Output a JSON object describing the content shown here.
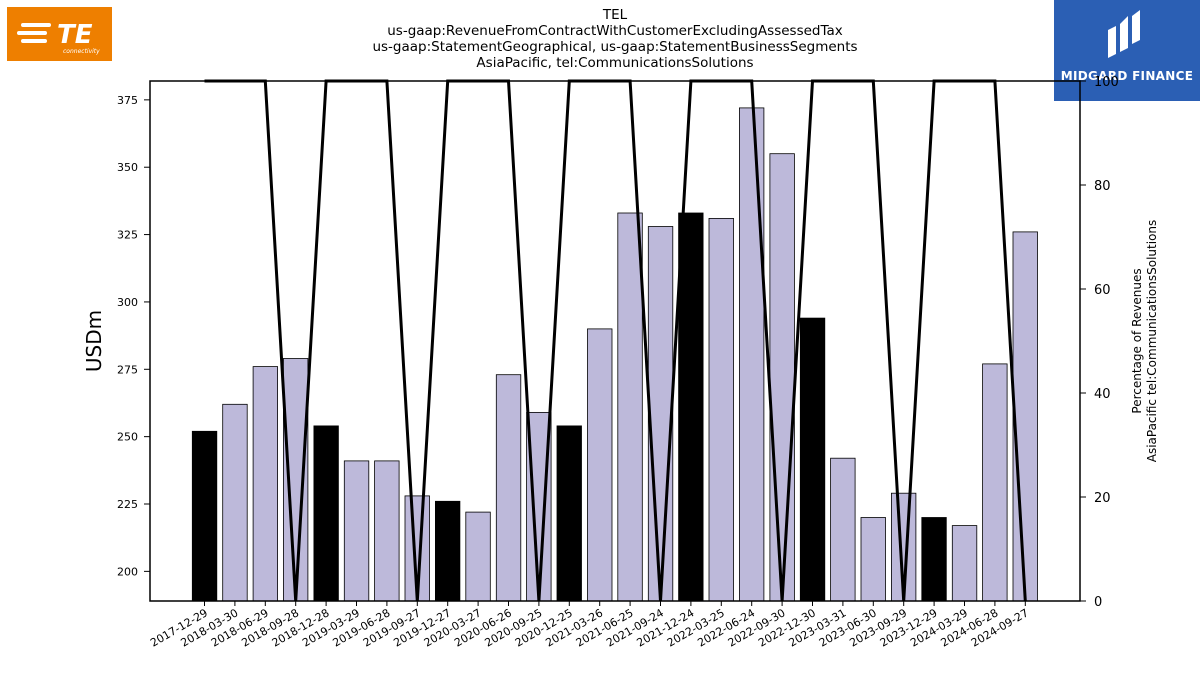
{
  "logos": {
    "left": {
      "text": "TE",
      "subtext": "connectivity",
      "color": "#ee7f00"
    },
    "right": {
      "text": "MIDGARD FINANCE",
      "color": "#2b5fb4"
    }
  },
  "chart_data": {
    "type": "bar",
    "title": [
      "TEL",
      "us-gaap:RevenueFromContractWithCustomerExcludingAssessedTax",
      "us-gaap:StatementGeographical, us-gaap:StatementBusinessSegments",
      "AsiaPacific, tel:CommunicationsSolutions"
    ],
    "ylabel": "USDm",
    "y2label": [
      "Percentage of Revenues",
      "AsiaPacific tel:CommunicationsSolutions"
    ],
    "ylim": [
      189,
      382
    ],
    "y2lim": [
      0,
      100
    ],
    "yticks": [
      200,
      225,
      250,
      275,
      300,
      325,
      350,
      375
    ],
    "y2ticks": [
      0,
      20,
      40,
      60,
      80,
      100
    ],
    "grid": false,
    "categories": [
      "2017-12-29",
      "2018-03-30",
      "2018-06-29",
      "2018-09-28",
      "2018-12-28",
      "2019-03-29",
      "2019-06-28",
      "2019-09-27",
      "2019-12-27",
      "2020-03-27",
      "2020-06-26",
      "2020-09-25",
      "2020-12-25",
      "2021-03-26",
      "2021-06-25",
      "2021-09-24",
      "2021-12-24",
      "2022-03-25",
      "2022-06-24",
      "2022-09-30",
      "2022-12-30",
      "2023-03-31",
      "2023-06-30",
      "2023-09-29",
      "2023-12-29",
      "2024-03-29",
      "2024-06-28",
      "2024-09-27"
    ],
    "values": [
      252,
      262,
      276,
      279,
      254,
      241,
      241,
      228,
      226,
      222,
      273,
      259,
      254,
      290,
      333,
      328,
      333,
      331,
      372,
      355,
      294,
      242,
      220,
      229,
      220,
      217,
      277,
      326
    ],
    "highlight": [
      true,
      false,
      false,
      false,
      true,
      false,
      false,
      false,
      true,
      false,
      false,
      false,
      true,
      false,
      false,
      false,
      true,
      false,
      false,
      false,
      true,
      false,
      false,
      false,
      true,
      false,
      false,
      false
    ],
    "line_values": [
      100,
      100,
      100,
      0,
      100,
      100,
      100,
      0,
      100,
      100,
      100,
      0,
      100,
      100,
      100,
      0,
      100,
      100,
      100,
      0,
      100,
      100,
      100,
      0,
      100,
      100,
      100,
      0
    ],
    "colors": {
      "bar": "#bdb9da",
      "highlight": "#000000",
      "line": "#000000"
    }
  }
}
